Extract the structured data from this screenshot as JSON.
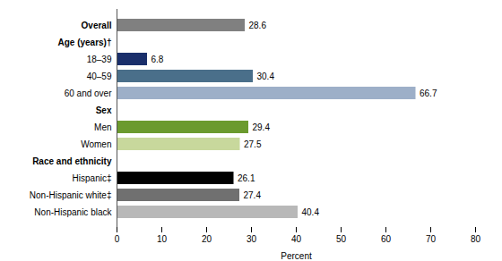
{
  "chart_data": {
    "type": "bar",
    "orientation": "horizontal",
    "categories": [
      "Overall",
      "Age (years)†",
      "18–39",
      "40–59",
      "60 and over",
      "Sex",
      "Men",
      "Women",
      "Race and ethnicity",
      "Hispanic‡",
      "Non-Hispanic white‡",
      "Non-Hispanic black"
    ],
    "values": [
      28.6,
      null,
      6.8,
      30.4,
      66.7,
      null,
      29.4,
      27.5,
      null,
      26.1,
      27.4,
      40.4
    ],
    "colors": [
      "#808080",
      null,
      "#1a2f6b",
      "#4a6f8a",
      "#9dafc8",
      null,
      "#6b9a2e",
      "#c8d89c",
      null,
      "#000000",
      "#707070",
      "#b8b8b8"
    ],
    "xlabel": "Percent",
    "xlim": [
      0,
      80
    ],
    "xticks": [
      0,
      10,
      20,
      30,
      40,
      50,
      60,
      70,
      80
    ],
    "data_labels": true,
    "grid": false
  }
}
